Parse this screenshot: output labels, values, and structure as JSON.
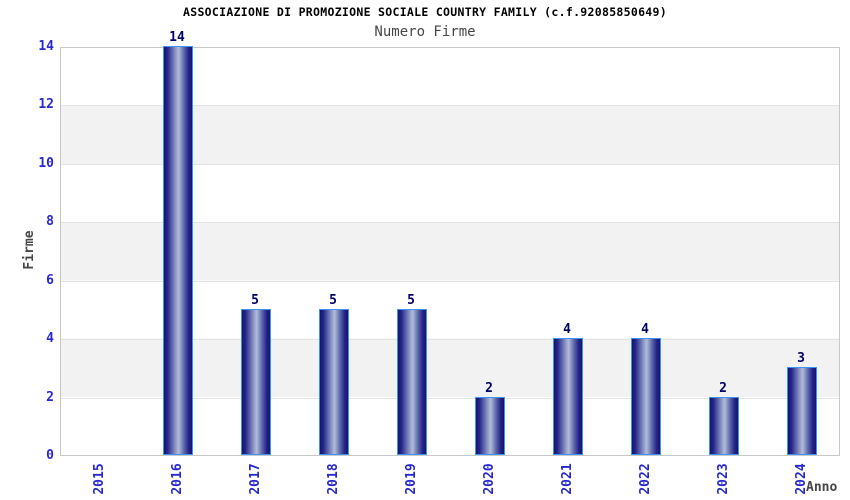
{
  "chart_data": {
    "type": "bar",
    "title": "ASSOCIAZIONE DI PROMOZIONE SOCIALE COUNTRY FAMILY (c.f.92085850649)",
    "subtitle": "Numero Firme",
    "xlabel": "Anno",
    "ylabel": "Firme",
    "categories": [
      "2015",
      "2016",
      "2017",
      "2018",
      "2019",
      "2020",
      "2021",
      "2022",
      "2023",
      "2024"
    ],
    "values": [
      0,
      14,
      5,
      5,
      5,
      2,
      4,
      4,
      2,
      3
    ],
    "ylim": [
      0,
      14
    ],
    "yticks": [
      0,
      2,
      4,
      6,
      8,
      10,
      12,
      14
    ],
    "gridline_ticks": [
      2,
      4,
      6,
      8,
      10,
      12
    ],
    "grid": true,
    "bands": true,
    "legend_position": "none"
  },
  "colors": {
    "background": "#ffffff",
    "band_gray": "#f2f2f2",
    "grid_line": "#e3e3e3",
    "plot_border": "#c8c8c8",
    "axis_label_blue": "#2828d2",
    "value_label_navy": "#000066",
    "text_gray": "#474747",
    "title_black": "#000000",
    "bar_border_blue": "#3b93f5",
    "bar_gradient_dark": "#15156e",
    "bar_gradient_light": "#b2bcda"
  }
}
